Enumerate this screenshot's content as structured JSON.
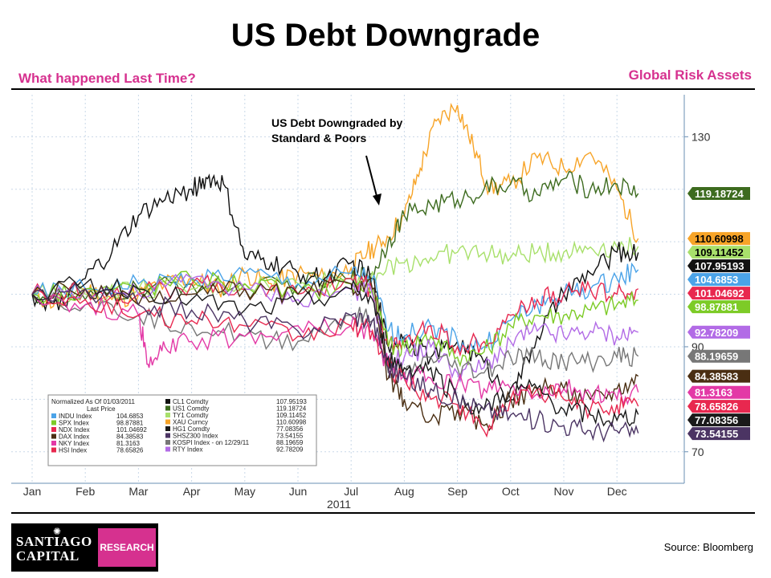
{
  "title": "US Debt Downgrade",
  "subtitle_left": "What happened Last Time?",
  "subtitle_right": "Global Risk Assets",
  "source": "Source: Bloomberg",
  "logo": {
    "line1": "SANTIAGO",
    "line2": "CAPITAL",
    "research": "RESEARCH",
    "mark": "✺"
  },
  "chart_data": {
    "type": "line",
    "x_axis": {
      "ticks": [
        "Jan",
        "Feb",
        "Mar",
        "Apr",
        "May",
        "Jun",
        "Jul",
        "Aug",
        "Sep",
        "Oct",
        "Nov",
        "Dec"
      ],
      "label": "2011"
    },
    "y_axis": {
      "ticks": [
        70,
        90,
        130
      ],
      "range": [
        64,
        138
      ],
      "side": "right"
    },
    "grid": true,
    "annotation": {
      "line1": "US Debt Downgraded by",
      "line2": "Standard & Poors",
      "points_to": "Aug"
    },
    "legend": {
      "header1": "Normalized As Of 01/03/2011",
      "header2": "Last Price",
      "placement": "bottom-left",
      "left": [
        {
          "label": "INDU Index",
          "value": "104.6853",
          "color": "#4ba3e8"
        },
        {
          "label": "SPX Index",
          "value": "98.87881",
          "color": "#7dcb27"
        },
        {
          "label": "NDX Index",
          "value": "101.04692",
          "color": "#e8284f"
        },
        {
          "label": "DAX Index",
          "value": "84.38583",
          "color": "#4a2e12"
        },
        {
          "label": "NKY Index",
          "value": "81.3163",
          "color": "#e339a6"
        },
        {
          "label": "HSI Index",
          "value": "78.65826",
          "color": "#e8284f"
        }
      ],
      "right": [
        {
          "label": "CL1 Comdty",
          "value": "107.95193",
          "color": "#111111"
        },
        {
          "label": "US1 Comdty",
          "value": "119.18724",
          "color": "#3d6b1f"
        },
        {
          "label": "TY1 Comdty",
          "value": "109.11452",
          "color": "#a8e06b"
        },
        {
          "label": "XAU Curncy",
          "value": "110.60998",
          "color": "#f7a428"
        },
        {
          "label": "HG1 Comdty",
          "value": "77.08356",
          "color": "#1a1a1a"
        },
        {
          "label": "SHSZ300 Index",
          "value": "73.54155",
          "color": "#4b3463"
        },
        {
          "label": "KOSPI Index - on 12/29/11",
          "value": "88.19659",
          "color": "#777777"
        },
        {
          "label": "RTY Index",
          "value": "92.78209",
          "color": "#b26be6"
        }
      ]
    },
    "end_labels": [
      {
        "value": "119.18724",
        "level": 119.19,
        "bg": "#3d6b1f",
        "fg": "#ffffff"
      },
      {
        "value": "110.60998",
        "level": 110.61,
        "bg": "#f7a428",
        "fg": "#000000"
      },
      {
        "value": "109.11452",
        "level": 109.11,
        "bg": "#a8e06b",
        "fg": "#000000"
      },
      {
        "value": "107.95193",
        "level": 107.95,
        "bg": "#111111",
        "fg": "#ffffff"
      },
      {
        "value": "104.6853",
        "level": 104.69,
        "bg": "#4ba3e8",
        "fg": "#ffffff"
      },
      {
        "value": "101.04692",
        "level": 101.05,
        "bg": "#e8284f",
        "fg": "#ffffff"
      },
      {
        "value": "98.87881",
        "level": 98.88,
        "bg": "#7dcb27",
        "fg": "#ffffff"
      },
      {
        "value": "92.78209",
        "level": 92.78,
        "bg": "#b26be6",
        "fg": "#ffffff"
      },
      {
        "value": "88.19659",
        "level": 88.2,
        "bg": "#777777",
        "fg": "#ffffff"
      },
      {
        "value": "84.38583",
        "level": 84.39,
        "bg": "#4a2e12",
        "fg": "#ffffff"
      },
      {
        "value": "81.3163",
        "level": 81.32,
        "bg": "#e339a6",
        "fg": "#ffffff"
      },
      {
        "value": "78.65826",
        "level": 78.66,
        "bg": "#e8284f",
        "fg": "#ffffff"
      },
      {
        "value": "77.08356",
        "level": 77.08,
        "bg": "#1a1a1a",
        "fg": "#ffffff"
      },
      {
        "value": "73.54155",
        "level": 73.54,
        "bg": "#4b3463",
        "fg": "#ffffff"
      }
    ],
    "series": [
      {
        "label": "XAU Curncy",
        "color": "#f7a428",
        "x": [
          0,
          0.5,
          1,
          1.5,
          2,
          2.5,
          3,
          3.5,
          4,
          4.5,
          5,
          5.5,
          6,
          6.3,
          6.6,
          7,
          7.3,
          7.6,
          8,
          8.3,
          8.6,
          9,
          9.5,
          10,
          10.5,
          11,
          11.4
        ],
        "values": [
          100,
          98,
          101,
          99,
          100,
          102,
          103,
          101,
          104,
          102,
          104,
          103,
          105,
          108,
          110,
          115,
          124,
          133,
          136,
          128,
          120,
          121,
          126,
          124,
          127,
          120,
          110.61
        ]
      },
      {
        "label": "US1 Comdty",
        "color": "#3d6b1f",
        "x": [
          0,
          1,
          2,
          3,
          4,
          5,
          6,
          6.4,
          6.7,
          7,
          7.5,
          8,
          8.5,
          9,
          9.5,
          10,
          10.5,
          11,
          11.4
        ],
        "values": [
          100,
          99,
          101,
          102,
          101,
          102,
          103,
          104,
          110,
          115,
          117,
          118,
          120,
          121,
          119,
          122,
          120,
          121,
          119.19
        ]
      },
      {
        "label": "TY1 Comdty",
        "color": "#a8e06b",
        "x": [
          0,
          1,
          2,
          3,
          4,
          5,
          6,
          6.5,
          7,
          7.5,
          8,
          8.5,
          9,
          9.5,
          10,
          10.5,
          11,
          11.4
        ],
        "values": [
          100,
          100,
          101,
          101,
          102,
          102,
          103,
          104,
          106,
          107,
          108,
          108,
          107,
          108,
          108,
          109,
          109,
          109.11
        ]
      },
      {
        "label": "CL1 Comdty",
        "color": "#111111",
        "x": [
          0,
          0.5,
          1,
          1.5,
          2,
          2.5,
          3,
          3.3,
          3.6,
          4,
          4.5,
          5,
          5.5,
          6,
          6.4,
          6.7,
          7,
          7.5,
          8,
          8.5,
          9,
          9.5,
          10,
          10.5,
          11,
          11.4
        ],
        "values": [
          100,
          97,
          103,
          108,
          115,
          118,
          120,
          122,
          121,
          107,
          106,
          104,
          103,
          106,
          103,
          90,
          92,
          88,
          91,
          87,
          80,
          92,
          100,
          104,
          108,
          107.95
        ]
      },
      {
        "label": "INDU Index",
        "color": "#4ba3e8",
        "x": [
          0,
          1,
          2,
          3,
          4,
          5,
          6,
          6.4,
          6.7,
          7,
          7.5,
          8,
          8.5,
          9,
          9.5,
          10,
          10.5,
          11,
          11.4
        ],
        "values": [
          100,
          101,
          102,
          103,
          104,
          102,
          104,
          103,
          93,
          92,
          94,
          91,
          90,
          95,
          98,
          100,
          101,
          103,
          104.69
        ]
      },
      {
        "label": "NDX Index",
        "color": "#e8284f",
        "x": [
          0,
          1,
          2,
          3,
          4,
          5,
          6,
          6.4,
          6.7,
          7,
          7.5,
          8,
          8.5,
          9,
          9.5,
          10,
          10.5,
          11,
          11.4
        ],
        "values": [
          100,
          101,
          100,
          102,
          101,
          100,
          103,
          101,
          90,
          91,
          94,
          90,
          91,
          96,
          99,
          100,
          101,
          100,
          101.05
        ]
      },
      {
        "label": "SPX Index",
        "color": "#7dcb27",
        "x": [
          0,
          1,
          2,
          3,
          4,
          5,
          6,
          6.4,
          6.7,
          7,
          7.5,
          8,
          8.5,
          9,
          9.5,
          10,
          10.5,
          11,
          11.4
        ],
        "values": [
          100,
          101,
          101,
          103,
          102,
          100,
          102,
          101,
          90,
          90,
          92,
          88,
          89,
          94,
          96,
          96,
          97,
          98,
          98.88
        ]
      },
      {
        "label": "RTY Index",
        "color": "#b26be6",
        "x": [
          0,
          1,
          2,
          3,
          4,
          5,
          6,
          6.4,
          6.7,
          7,
          7.5,
          8,
          8.5,
          9,
          9.5,
          10,
          10.5,
          11,
          11.4
        ],
        "values": [
          100,
          101,
          100,
          103,
          101,
          99,
          101,
          100,
          87,
          88,
          90,
          85,
          86,
          91,
          93,
          92,
          93,
          92,
          92.78
        ]
      },
      {
        "label": "KOSPI Index",
        "color": "#777777",
        "x": [
          0,
          1,
          2,
          3,
          4,
          5,
          6,
          6.4,
          6.7,
          7,
          7.5,
          8,
          8.5,
          9,
          9.5,
          10,
          10.5,
          11,
          11.4
        ],
        "values": [
          100,
          98,
          96,
          94,
          92,
          91,
          96,
          95,
          85,
          84,
          88,
          86,
          85,
          88,
          88,
          87,
          87,
          88,
          88.2
        ]
      },
      {
        "label": "DAX Index",
        "color": "#4a2e12",
        "x": [
          0,
          1,
          2,
          3,
          4,
          5,
          6,
          6.4,
          6.7,
          7,
          7.5,
          8,
          8.5,
          9,
          9.5,
          10,
          10.5,
          11,
          11.4
        ],
        "values": [
          100,
          101,
          98,
          100,
          101,
          100,
          102,
          101,
          84,
          80,
          76,
          78,
          75,
          80,
          82,
          82,
          80,
          82,
          84.39
        ]
      },
      {
        "label": "NKY Index",
        "color": "#e339a6",
        "x": [
          0,
          1,
          2,
          2.2,
          2.5,
          3,
          4,
          5,
          6,
          6.4,
          6.7,
          7,
          7.5,
          8,
          8.5,
          9,
          9.5,
          10,
          10.5,
          11,
          11.4
        ],
        "values": [
          100,
          98,
          96,
          86,
          90,
          91,
          92,
          94,
          94,
          93,
          86,
          85,
          84,
          83,
          82,
          82,
          81,
          82,
          81,
          80,
          81.32
        ]
      },
      {
        "label": "HSI Index",
        "color": "#e8284f",
        "x": [
          0,
          1,
          2,
          3,
          4,
          5,
          6,
          6.4,
          6.7,
          7,
          7.5,
          8,
          8.5,
          9,
          9.5,
          10,
          10.5,
          11,
          11.4
        ],
        "values": [
          100,
          99,
          96,
          95,
          94,
          92,
          94,
          93,
          86,
          84,
          80,
          79,
          74,
          80,
          82,
          80,
          78,
          79,
          78.66
        ]
      },
      {
        "label": "HG1 Comdty",
        "color": "#1a1a1a",
        "x": [
          0,
          1,
          2,
          3,
          4,
          5,
          6,
          6.4,
          6.7,
          7,
          7.5,
          8,
          8.5,
          9,
          9.5,
          10,
          10.5,
          11,
          11.4
        ],
        "values": [
          100,
          102,
          101,
          99,
          97,
          98,
          101,
          99,
          88,
          86,
          86,
          80,
          78,
          82,
          82,
          78,
          77,
          76,
          77.08
        ]
      },
      {
        "label": "SHSZ300 Index",
        "color": "#4b3463",
        "x": [
          0,
          1,
          2,
          3,
          4,
          5,
          6,
          6.4,
          6.7,
          7,
          7.5,
          8,
          8.5,
          9,
          9.5,
          10,
          10.5,
          11,
          11.4
        ],
        "values": [
          100,
          101,
          98,
          97,
          95,
          93,
          96,
          95,
          86,
          84,
          82,
          80,
          78,
          77,
          76,
          75,
          74,
          74,
          73.54
        ]
      }
    ]
  }
}
